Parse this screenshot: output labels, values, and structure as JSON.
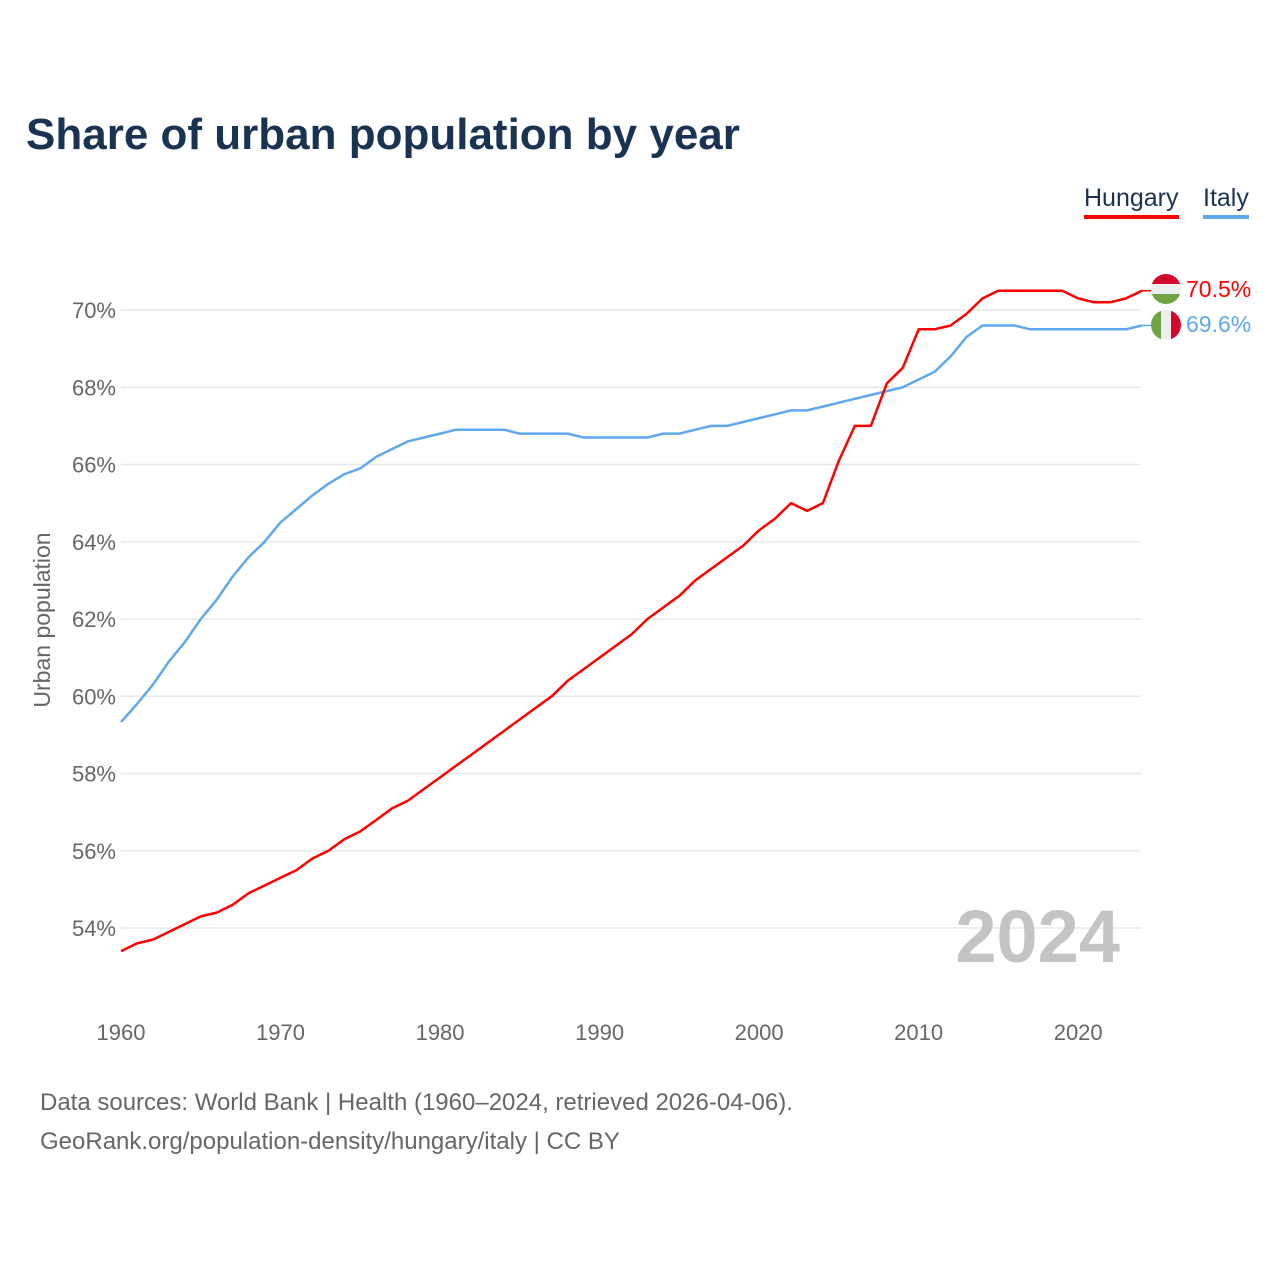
{
  "chart_data": {
    "type": "line",
    "title": "Share of urban population by year",
    "ylabel": "Urban population",
    "xlabel": "",
    "xlim": [
      1960,
      2024
    ],
    "ylim": [
      52.2,
      71.6
    ],
    "x_ticks": [
      1960,
      1970,
      1980,
      1990,
      2000,
      2010,
      2020
    ],
    "y_ticks": [
      54,
      56,
      58,
      60,
      62,
      64,
      66,
      68,
      70
    ],
    "y_tick_labels": [
      "54%",
      "56%",
      "58%",
      "60%",
      "62%",
      "64%",
      "66%",
      "68%",
      "70%"
    ],
    "grid": true,
    "legend_position": "top-right",
    "year_watermark": "2024",
    "x": [
      1960,
      1961,
      1962,
      1963,
      1964,
      1965,
      1966,
      1967,
      1968,
      1969,
      1970,
      1971,
      1972,
      1973,
      1974,
      1975,
      1976,
      1977,
      1978,
      1979,
      1980,
      1981,
      1982,
      1983,
      1984,
      1985,
      1986,
      1987,
      1988,
      1989,
      1990,
      1991,
      1992,
      1993,
      1994,
      1995,
      1996,
      1997,
      1998,
      1999,
      2000,
      2001,
      2002,
      2003,
      2004,
      2005,
      2006,
      2007,
      2008,
      2009,
      2010,
      2011,
      2012,
      2013,
      2014,
      2015,
      2016,
      2017,
      2018,
      2019,
      2020,
      2021,
      2022,
      2023,
      2024
    ],
    "series": [
      {
        "name": "Hungary",
        "color": "#ff0000",
        "end_label": "70.5%",
        "values": [
          53.4,
          53.6,
          53.7,
          53.9,
          54.1,
          54.3,
          54.4,
          54.6,
          54.9,
          55.1,
          55.3,
          55.5,
          55.8,
          56.0,
          56.3,
          56.5,
          56.8,
          57.1,
          57.3,
          57.6,
          57.9,
          58.2,
          58.5,
          58.8,
          59.1,
          59.4,
          59.7,
          60.0,
          60.4,
          60.7,
          61.0,
          61.3,
          61.6,
          62.0,
          62.3,
          62.6,
          63.0,
          63.3,
          63.6,
          63.9,
          64.3,
          64.6,
          65.0,
          64.8,
          65.0,
          66.1,
          67.0,
          67.0,
          68.1,
          68.5,
          69.5,
          69.5,
          69.6,
          69.9,
          70.3,
          70.5,
          70.5,
          70.5,
          70.5,
          70.5,
          70.3,
          70.2,
          70.2,
          70.3,
          70.5
        ]
      },
      {
        "name": "Italy",
        "color": "#5fa8f0",
        "end_label": "69.6%",
        "values": [
          59.33,
          59.8,
          60.3,
          60.9,
          61.4,
          62.0,
          62.5,
          63.1,
          63.6,
          64.0,
          64.5,
          64.85,
          65.2,
          65.5,
          65.75,
          65.9,
          66.2,
          66.4,
          66.6,
          66.7,
          66.8,
          66.9,
          66.9,
          66.9,
          66.9,
          66.8,
          66.8,
          66.8,
          66.8,
          66.7,
          66.7,
          66.7,
          66.7,
          66.7,
          66.8,
          66.8,
          66.9,
          67.0,
          67.0,
          67.1,
          67.2,
          67.3,
          67.4,
          67.4,
          67.5,
          67.6,
          67.7,
          67.8,
          67.9,
          68.0,
          68.2,
          68.4,
          68.8,
          69.3,
          69.6,
          69.6,
          69.6,
          69.5,
          69.5,
          69.5,
          69.5,
          69.5,
          69.5,
          69.5,
          69.6
        ]
      }
    ]
  },
  "footer": {
    "line1": "Data sources: World Bank | Health (1960–2024, retrieved 2026-04-06).",
    "line2": "GeoRank.org/population-density/hungary/italy | CC BY"
  }
}
